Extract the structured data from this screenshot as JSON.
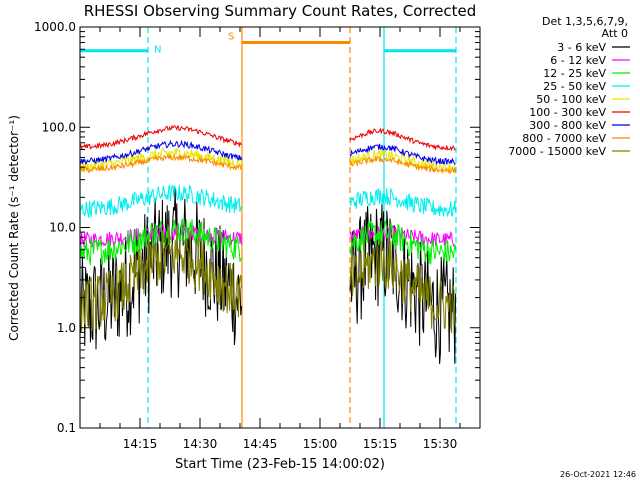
{
  "chart_data": {
    "type": "line",
    "title": "RHESSI Observing Summary Count Rates, Corrected",
    "xlabel": "Start Time (23-Feb-15 14:00:02)",
    "ylabel": "Corrected Count Rate (s⁻¹ detector⁻¹)",
    "yscale": "log",
    "ylim": [
      0.1,
      1000
    ],
    "xlim_minutes": [
      0,
      100
    ],
    "y_tick_labels": [
      "1000.0",
      "100.0",
      "10.0",
      "1.0",
      "0.1"
    ],
    "y_tick_values": [
      1000,
      100,
      10,
      1,
      0.1
    ],
    "x_tick_labels": [
      "14:15",
      "14:30",
      "14:45",
      "15:00",
      "15:15",
      "15:30"
    ],
    "x_tick_values": [
      15,
      30,
      45,
      60,
      75,
      90
    ],
    "legend_header": [
      "Det 1,3,5,6,7,9,",
      "Att 0"
    ],
    "footer_date": "26-Oct-2021 12:46",
    "segments": [
      [
        0,
        40.5
      ],
      [
        67.5,
        94
      ]
    ],
    "series": [
      {
        "name": "3 - 6 keV",
        "color": "#000000",
        "base": 1.4,
        "peak": 7.0,
        "noise": 0.55
      },
      {
        "name": "6 - 12 keV",
        "color": "#ff00ff",
        "base": 7.5,
        "peak": 9.0,
        "noise": 0.08
      },
      {
        "name": "12 - 25 keV",
        "color": "#00ee00",
        "base": 5.5,
        "peak": 9.5,
        "noise": 0.14
      },
      {
        "name": "25 - 50 keV",
        "color": "#00eeee",
        "base": 15,
        "peak": 22,
        "noise": 0.09
      },
      {
        "name": "50 - 100 keV",
        "color": "#e6e600",
        "base": 40,
        "peak": 55,
        "noise": 0.06
      },
      {
        "name": "100 - 300 keV",
        "color": "#ee0000",
        "base": 62,
        "peak": 98,
        "noise": 0.025
      },
      {
        "name": "300 - 800 keV",
        "color": "#0000ee",
        "base": 45,
        "peak": 68,
        "noise": 0.03
      },
      {
        "name": "800 - 7000 keV",
        "color": "#ff8800",
        "base": 37,
        "peak": 50,
        "noise": 0.03
      },
      {
        "name": "7000 - 15000 keV",
        "color": "#808000",
        "base": 1.6,
        "peak": 5.5,
        "noise": 0.28
      }
    ],
    "flags": [
      {
        "label": "N",
        "color": "#00e5ee",
        "start": 0,
        "end": 17,
        "level": 580
      },
      {
        "label": "",
        "color": "#00e5ee",
        "start": 76,
        "end": 94,
        "level": 580
      },
      {
        "label": "S",
        "color": "#ff8800",
        "start": 40.5,
        "end": 67.5,
        "level": 700
      }
    ],
    "vlines": [
      {
        "t": 0,
        "color": "#00e5ee",
        "style": "solid"
      },
      {
        "t": 17,
        "color": "#00e5ee",
        "style": "dashed"
      },
      {
        "t": 40.5,
        "color": "#ff8800",
        "style": "solid"
      },
      {
        "t": 67.5,
        "color": "#ff8800",
        "style": "dashed"
      },
      {
        "t": 76,
        "color": "#00e5ee",
        "style": "solid"
      },
      {
        "t": 94,
        "color": "#00e5ee",
        "style": "dashed"
      }
    ]
  }
}
